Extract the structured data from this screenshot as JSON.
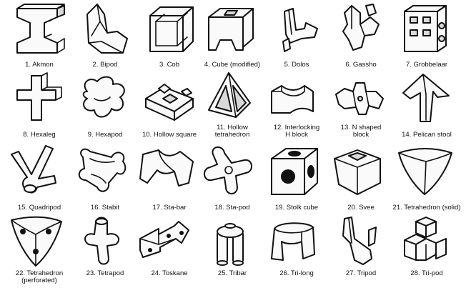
{
  "units": [
    {
      "num": "1.",
      "name": "Akmon",
      "icon": "akmon-icon"
    },
    {
      "num": "2.",
      "name": "Bipod",
      "icon": "bipod-icon"
    },
    {
      "num": "3.",
      "name": "Cob",
      "icon": "cob-icon"
    },
    {
      "num": "4.",
      "name": "Cube (modified)",
      "icon": "modified-cube-icon"
    },
    {
      "num": "5.",
      "name": "Dolos",
      "icon": "dolos-icon"
    },
    {
      "num": "6.",
      "name": "Gassho",
      "icon": "gassho-icon"
    },
    {
      "num": "7.",
      "name": "Grobbelaar",
      "icon": "grobbelaar-icon"
    },
    {
      "num": "8.",
      "name": "Hexaleg",
      "icon": "hexaleg-icon"
    },
    {
      "num": "9.",
      "name": "Hexapod",
      "icon": "hexapod-icon"
    },
    {
      "num": "10.",
      "name": "Hollow square",
      "icon": "hollow-square-icon"
    },
    {
      "num": "11.",
      "name": "Hollow\ntetrahedron",
      "icon": "hollow-tetrahedron-icon"
    },
    {
      "num": "12.",
      "name": "Interlocking\nH block",
      "icon": "interlocking-h-block-icon"
    },
    {
      "num": "13.",
      "name": "N shaped\nblock",
      "icon": "n-shaped-block-icon"
    },
    {
      "num": "14.",
      "name": "Pelican stool",
      "icon": "pelican-stool-icon"
    },
    {
      "num": "15.",
      "name": "Quadripod",
      "icon": "quadripod-icon"
    },
    {
      "num": "16.",
      "name": "Stabit",
      "icon": "stabit-icon"
    },
    {
      "num": "17.",
      "name": "Sta-bar",
      "icon": "sta-bar-icon"
    },
    {
      "num": "18.",
      "name": "Sta-pod",
      "icon": "sta-pod-icon"
    },
    {
      "num": "19.",
      "name": "Stolk cube",
      "icon": "stolk-cube-icon"
    },
    {
      "num": "20.",
      "name": "Svee",
      "icon": "svee-icon"
    },
    {
      "num": "21.",
      "name": "Tetrahedron (solid)",
      "icon": "solid-tetrahedron-icon"
    },
    {
      "num": "22.",
      "name": "Tetrahedron\n(perforated)",
      "icon": "perforated-tetrahedron-icon"
    },
    {
      "num": "23.",
      "name": "Tetrapod",
      "icon": "tetrapod-icon"
    },
    {
      "num": "24.",
      "name": "Toskane",
      "icon": "toskane-icon"
    },
    {
      "num": "25.",
      "name": "Tribar",
      "icon": "tribar-icon"
    },
    {
      "num": "26.",
      "name": "Tri-long",
      "icon": "tri-long-icon"
    },
    {
      "num": "27.",
      "name": "Tripod",
      "icon": "tripod-icon"
    },
    {
      "num": "28.",
      "name": "Tri-pod",
      "icon": "tri-pod-icon"
    }
  ],
  "colors": {
    "ink": "#111111",
    "paper": "#ffffff",
    "shade": "#d9d9d9"
  }
}
